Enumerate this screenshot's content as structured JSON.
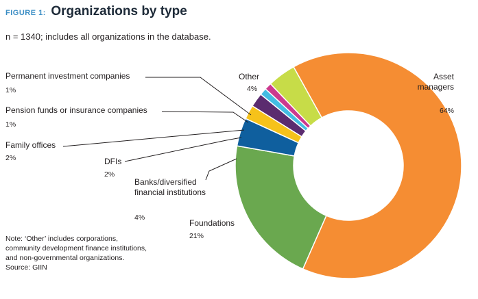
{
  "figure": {
    "label": "FIGURE 1:",
    "title": "Organizations by type"
  },
  "subtitle": "n = 1340; includes all organizations in the database.",
  "note_lines": [
    "Note: ‘Other’ includes corporations,",
    "community development finance institutions,",
    "and non-governmental organizations.",
    "Source: GIIN"
  ],
  "chart_data": {
    "type": "pie",
    "title": "Organizations by type",
    "subtitle": "n = 1340; includes all organizations in the database.",
    "hole": "donut",
    "categories": [
      "Asset managers",
      "Foundations",
      "Banks/diversified financial institutions",
      "DFIs",
      "Family offices",
      "Pension funds or insurance companies",
      "Permanent investment companies",
      "Other"
    ],
    "values": [
      64,
      21,
      4,
      2,
      2,
      1,
      1,
      4
    ],
    "label_texts": [
      [
        "Asset",
        "managers"
      ],
      [
        "Foundations"
      ],
      [
        "Banks/diversified",
        "financial institutions"
      ],
      [
        "DFIs"
      ],
      [
        "Family offices"
      ],
      [
        "Pension funds or insurance companies"
      ],
      [
        "Permanent investment companies"
      ],
      [
        "Other"
      ]
    ],
    "pct_labels": [
      "64%",
      "21%",
      "4%",
      "2%",
      "2%",
      "1%",
      "1%",
      "4%"
    ],
    "colors": [
      "#f58d33",
      "#6aa84f",
      "#0f5f9e",
      "#f6c21a",
      "#5b2c6f",
      "#43bde3",
      "#cc3a8e",
      "#c7dc48"
    ]
  }
}
